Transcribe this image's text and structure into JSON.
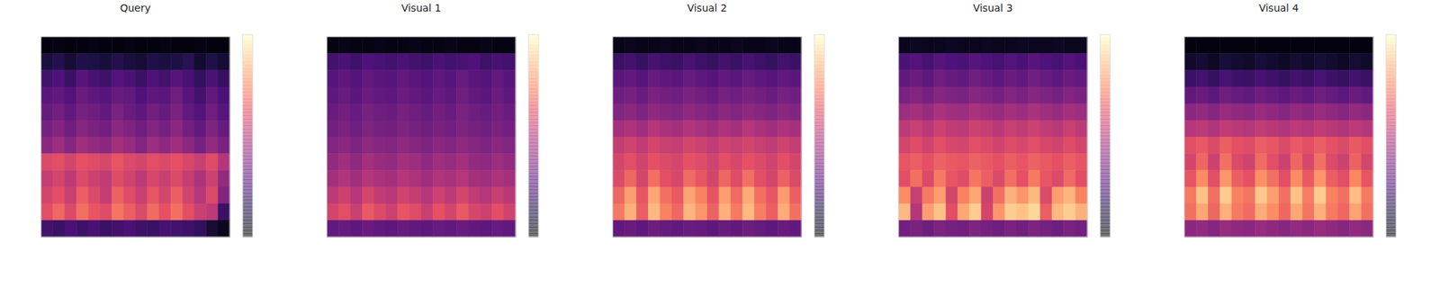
{
  "chart_data": [
    {
      "type": "heatmap",
      "title": "Query",
      "color": "magma",
      "color_range": [
        0,
        1
      ],
      "tick_labels": false,
      "cells": [
        [
          0.02,
          0.03,
          0.02,
          0.02,
          0.03,
          0.02,
          0.02,
          0.03,
          0.02,
          0.02,
          0.03,
          0.02,
          0.02,
          0.03,
          0.02,
          0.02
        ],
        [
          0.12,
          0.15,
          0.1,
          0.14,
          0.13,
          0.11,
          0.15,
          0.12,
          0.1,
          0.14,
          0.12,
          0.13,
          0.16,
          0.09,
          0.14,
          0.1
        ],
        [
          0.22,
          0.25,
          0.2,
          0.27,
          0.23,
          0.21,
          0.26,
          0.24,
          0.2,
          0.25,
          0.22,
          0.27,
          0.23,
          0.18,
          0.24,
          0.19
        ],
        [
          0.28,
          0.3,
          0.26,
          0.32,
          0.29,
          0.27,
          0.31,
          0.3,
          0.25,
          0.29,
          0.28,
          0.33,
          0.27,
          0.22,
          0.3,
          0.24
        ],
        [
          0.31,
          0.34,
          0.3,
          0.35,
          0.33,
          0.3,
          0.36,
          0.32,
          0.29,
          0.34,
          0.31,
          0.36,
          0.3,
          0.26,
          0.33,
          0.27
        ],
        [
          0.35,
          0.38,
          0.33,
          0.39,
          0.36,
          0.34,
          0.4,
          0.37,
          0.33,
          0.38,
          0.35,
          0.4,
          0.34,
          0.3,
          0.37,
          0.31
        ],
        [
          0.4,
          0.44,
          0.39,
          0.45,
          0.42,
          0.4,
          0.46,
          0.43,
          0.38,
          0.44,
          0.41,
          0.45,
          0.4,
          0.35,
          0.42,
          0.36
        ],
        [
          0.6,
          0.62,
          0.58,
          0.63,
          0.61,
          0.59,
          0.64,
          0.6,
          0.58,
          0.62,
          0.6,
          0.63,
          0.59,
          0.55,
          0.61,
          0.5
        ],
        [
          0.54,
          0.58,
          0.52,
          0.6,
          0.56,
          0.53,
          0.61,
          0.57,
          0.52,
          0.59,
          0.55,
          0.6,
          0.54,
          0.48,
          0.56,
          0.42
        ],
        [
          0.58,
          0.62,
          0.55,
          0.66,
          0.6,
          0.54,
          0.67,
          0.61,
          0.55,
          0.64,
          0.58,
          0.66,
          0.57,
          0.5,
          0.6,
          0.38
        ],
        [
          0.62,
          0.68,
          0.6,
          0.7,
          0.64,
          0.61,
          0.71,
          0.66,
          0.6,
          0.69,
          0.63,
          0.7,
          0.62,
          0.55,
          0.52,
          0.2
        ],
        [
          0.22,
          0.2,
          0.24,
          0.21,
          0.23,
          0.2,
          0.22,
          0.24,
          0.21,
          0.2,
          0.23,
          0.22,
          0.21,
          0.18,
          0.1,
          0.05
        ]
      ]
    },
    {
      "type": "heatmap",
      "title": "Visual 1",
      "color": "magma",
      "color_range": [
        0,
        1
      ],
      "tick_labels": false,
      "cells": [
        [
          0.03,
          0.04,
          0.03,
          0.03,
          0.04,
          0.03,
          0.03,
          0.04,
          0.03,
          0.03,
          0.04,
          0.03,
          0.03,
          0.04,
          0.03,
          0.03
        ],
        [
          0.22,
          0.24,
          0.21,
          0.25,
          0.23,
          0.22,
          0.24,
          0.22,
          0.21,
          0.24,
          0.22,
          0.23,
          0.25,
          0.21,
          0.23,
          0.22
        ],
        [
          0.27,
          0.29,
          0.26,
          0.3,
          0.28,
          0.27,
          0.3,
          0.28,
          0.26,
          0.29,
          0.27,
          0.31,
          0.28,
          0.26,
          0.3,
          0.27
        ],
        [
          0.29,
          0.31,
          0.28,
          0.32,
          0.3,
          0.29,
          0.32,
          0.3,
          0.28,
          0.31,
          0.29,
          0.33,
          0.3,
          0.28,
          0.32,
          0.29
        ],
        [
          0.32,
          0.34,
          0.31,
          0.35,
          0.33,
          0.32,
          0.35,
          0.33,
          0.31,
          0.34,
          0.32,
          0.36,
          0.33,
          0.31,
          0.34,
          0.32
        ],
        [
          0.34,
          0.36,
          0.33,
          0.37,
          0.35,
          0.34,
          0.37,
          0.35,
          0.33,
          0.36,
          0.34,
          0.37,
          0.35,
          0.33,
          0.36,
          0.34
        ],
        [
          0.38,
          0.4,
          0.37,
          0.41,
          0.39,
          0.38,
          0.41,
          0.39,
          0.37,
          0.4,
          0.38,
          0.41,
          0.39,
          0.37,
          0.4,
          0.38
        ],
        [
          0.42,
          0.45,
          0.41,
          0.46,
          0.43,
          0.42,
          0.46,
          0.44,
          0.41,
          0.45,
          0.43,
          0.46,
          0.42,
          0.41,
          0.44,
          0.42
        ],
        [
          0.46,
          0.49,
          0.45,
          0.5,
          0.47,
          0.46,
          0.5,
          0.48,
          0.45,
          0.49,
          0.47,
          0.5,
          0.46,
          0.45,
          0.48,
          0.46
        ],
        [
          0.52,
          0.56,
          0.5,
          0.58,
          0.53,
          0.51,
          0.57,
          0.54,
          0.5,
          0.56,
          0.52,
          0.58,
          0.53,
          0.5,
          0.55,
          0.51
        ],
        [
          0.58,
          0.62,
          0.55,
          0.65,
          0.6,
          0.56,
          0.64,
          0.61,
          0.55,
          0.63,
          0.58,
          0.65,
          0.59,
          0.56,
          0.62,
          0.57
        ],
        [
          0.3,
          0.31,
          0.29,
          0.32,
          0.3,
          0.29,
          0.31,
          0.3,
          0.29,
          0.31,
          0.3,
          0.32,
          0.3,
          0.29,
          0.31,
          0.3
        ]
      ]
    },
    {
      "type": "heatmap",
      "title": "Visual 2",
      "color": "magma",
      "color_range": [
        0,
        1
      ],
      "tick_labels": false,
      "cells": [
        [
          0.04,
          0.05,
          0.04,
          0.04,
          0.05,
          0.04,
          0.04,
          0.05,
          0.04,
          0.04,
          0.05,
          0.04,
          0.04,
          0.05,
          0.04,
          0.04
        ],
        [
          0.2,
          0.22,
          0.19,
          0.23,
          0.21,
          0.2,
          0.23,
          0.21,
          0.19,
          0.22,
          0.2,
          0.23,
          0.21,
          0.19,
          0.22,
          0.2
        ],
        [
          0.28,
          0.3,
          0.27,
          0.31,
          0.29,
          0.28,
          0.31,
          0.29,
          0.27,
          0.3,
          0.28,
          0.31,
          0.29,
          0.27,
          0.3,
          0.28
        ],
        [
          0.33,
          0.35,
          0.32,
          0.36,
          0.34,
          0.33,
          0.36,
          0.34,
          0.32,
          0.35,
          0.33,
          0.36,
          0.34,
          0.32,
          0.35,
          0.33
        ],
        [
          0.38,
          0.4,
          0.37,
          0.41,
          0.39,
          0.38,
          0.41,
          0.39,
          0.37,
          0.4,
          0.38,
          0.41,
          0.39,
          0.37,
          0.4,
          0.38
        ],
        [
          0.46,
          0.48,
          0.45,
          0.5,
          0.47,
          0.46,
          0.49,
          0.47,
          0.45,
          0.48,
          0.46,
          0.5,
          0.47,
          0.45,
          0.48,
          0.46
        ],
        [
          0.54,
          0.57,
          0.53,
          0.58,
          0.55,
          0.54,
          0.58,
          0.56,
          0.53,
          0.57,
          0.55,
          0.58,
          0.55,
          0.53,
          0.57,
          0.54
        ],
        [
          0.58,
          0.62,
          0.57,
          0.63,
          0.6,
          0.58,
          0.63,
          0.61,
          0.57,
          0.62,
          0.59,
          0.63,
          0.6,
          0.57,
          0.62,
          0.58
        ],
        [
          0.6,
          0.68,
          0.58,
          0.7,
          0.62,
          0.59,
          0.69,
          0.64,
          0.58,
          0.68,
          0.61,
          0.7,
          0.62,
          0.58,
          0.67,
          0.6
        ],
        [
          0.68,
          0.8,
          0.64,
          0.82,
          0.7,
          0.65,
          0.81,
          0.74,
          0.64,
          0.8,
          0.69,
          0.83,
          0.7,
          0.64,
          0.79,
          0.66
        ],
        [
          0.72,
          0.84,
          0.66,
          0.86,
          0.74,
          0.68,
          0.85,
          0.78,
          0.67,
          0.84,
          0.72,
          0.86,
          0.73,
          0.66,
          0.83,
          0.7
        ],
        [
          0.3,
          0.32,
          0.29,
          0.33,
          0.31,
          0.3,
          0.32,
          0.31,
          0.29,
          0.32,
          0.3,
          0.33,
          0.31,
          0.29,
          0.32,
          0.3
        ]
      ]
    },
    {
      "type": "heatmap",
      "title": "Visual 3",
      "color": "magma",
      "color_range": [
        0,
        1
      ],
      "tick_labels": false,
      "cells": [
        [
          0.05,
          0.06,
          0.05,
          0.05,
          0.06,
          0.05,
          0.05,
          0.06,
          0.05,
          0.05,
          0.06,
          0.05,
          0.05,
          0.06,
          0.05,
          0.05
        ],
        [
          0.24,
          0.26,
          0.23,
          0.27,
          0.25,
          0.24,
          0.27,
          0.25,
          0.23,
          0.26,
          0.24,
          0.27,
          0.25,
          0.23,
          0.26,
          0.24
        ],
        [
          0.3,
          0.32,
          0.29,
          0.33,
          0.31,
          0.3,
          0.33,
          0.31,
          0.29,
          0.32,
          0.3,
          0.33,
          0.31,
          0.29,
          0.32,
          0.3
        ],
        [
          0.36,
          0.38,
          0.35,
          0.39,
          0.37,
          0.36,
          0.39,
          0.37,
          0.35,
          0.38,
          0.36,
          0.39,
          0.37,
          0.35,
          0.38,
          0.36
        ],
        [
          0.44,
          0.46,
          0.43,
          0.47,
          0.45,
          0.44,
          0.47,
          0.45,
          0.43,
          0.46,
          0.44,
          0.47,
          0.45,
          0.43,
          0.46,
          0.44
        ],
        [
          0.52,
          0.55,
          0.51,
          0.56,
          0.53,
          0.52,
          0.56,
          0.54,
          0.51,
          0.55,
          0.53,
          0.56,
          0.53,
          0.51,
          0.55,
          0.52
        ],
        [
          0.58,
          0.61,
          0.57,
          0.62,
          0.59,
          0.58,
          0.62,
          0.6,
          0.57,
          0.61,
          0.59,
          0.62,
          0.59,
          0.57,
          0.61,
          0.58
        ],
        [
          0.64,
          0.66,
          0.63,
          0.67,
          0.65,
          0.64,
          0.67,
          0.65,
          0.63,
          0.66,
          0.64,
          0.67,
          0.65,
          0.63,
          0.66,
          0.64
        ],
        [
          0.62,
          0.7,
          0.6,
          0.72,
          0.64,
          0.61,
          0.71,
          0.66,
          0.6,
          0.7,
          0.63,
          0.72,
          0.64,
          0.6,
          0.69,
          0.62
        ],
        [
          0.76,
          0.55,
          0.72,
          0.8,
          0.58,
          0.74,
          0.82,
          0.56,
          0.7,
          0.84,
          0.78,
          0.86,
          0.6,
          0.8,
          0.85,
          0.74
        ],
        [
          0.86,
          0.5,
          0.8,
          0.88,
          0.62,
          0.82,
          0.9,
          0.58,
          0.78,
          0.9,
          0.88,
          0.92,
          0.66,
          0.86,
          0.9,
          0.84
        ],
        [
          0.34,
          0.36,
          0.33,
          0.37,
          0.35,
          0.34,
          0.37,
          0.35,
          0.33,
          0.36,
          0.34,
          0.37,
          0.35,
          0.33,
          0.36,
          0.34
        ]
      ]
    },
    {
      "type": "heatmap",
      "title": "Visual 4",
      "color": "magma",
      "color_range": [
        0,
        1
      ],
      "tick_labels": false,
      "cells": [
        [
          0.02,
          0.02,
          0.02,
          0.02,
          0.02,
          0.02,
          0.02,
          0.02,
          0.02,
          0.02,
          0.02,
          0.02,
          0.02,
          0.02,
          0.02,
          0.02
        ],
        [
          0.08,
          0.1,
          0.07,
          0.11,
          0.09,
          0.08,
          0.11,
          0.09,
          0.07,
          0.1,
          0.08,
          0.11,
          0.09,
          0.07,
          0.1,
          0.08
        ],
        [
          0.2,
          0.22,
          0.19,
          0.23,
          0.21,
          0.2,
          0.23,
          0.21,
          0.19,
          0.22,
          0.2,
          0.23,
          0.21,
          0.19,
          0.22,
          0.2
        ],
        [
          0.3,
          0.32,
          0.29,
          0.33,
          0.31,
          0.3,
          0.33,
          0.31,
          0.29,
          0.32,
          0.3,
          0.33,
          0.31,
          0.29,
          0.32,
          0.3
        ],
        [
          0.4,
          0.42,
          0.39,
          0.43,
          0.41,
          0.4,
          0.43,
          0.41,
          0.39,
          0.42,
          0.4,
          0.43,
          0.41,
          0.39,
          0.42,
          0.4
        ],
        [
          0.5,
          0.52,
          0.49,
          0.53,
          0.51,
          0.5,
          0.53,
          0.51,
          0.49,
          0.52,
          0.5,
          0.53,
          0.51,
          0.49,
          0.52,
          0.5
        ],
        [
          0.62,
          0.65,
          0.6,
          0.66,
          0.63,
          0.61,
          0.66,
          0.64,
          0.6,
          0.65,
          0.62,
          0.66,
          0.63,
          0.6,
          0.65,
          0.62
        ],
        [
          0.58,
          0.68,
          0.56,
          0.7,
          0.6,
          0.57,
          0.69,
          0.62,
          0.56,
          0.68,
          0.59,
          0.7,
          0.6,
          0.56,
          0.67,
          0.58
        ],
        [
          0.64,
          0.76,
          0.62,
          0.78,
          0.66,
          0.63,
          0.77,
          0.7,
          0.62,
          0.76,
          0.65,
          0.78,
          0.66,
          0.62,
          0.75,
          0.64
        ],
        [
          0.72,
          0.88,
          0.7,
          0.9,
          0.74,
          0.71,
          0.89,
          0.8,
          0.7,
          0.88,
          0.73,
          0.9,
          0.74,
          0.7,
          0.87,
          0.72
        ],
        [
          0.7,
          0.82,
          0.68,
          0.84,
          0.72,
          0.69,
          0.83,
          0.76,
          0.68,
          0.82,
          0.71,
          0.84,
          0.72,
          0.68,
          0.81,
          0.7
        ],
        [
          0.4,
          0.42,
          0.39,
          0.43,
          0.41,
          0.4,
          0.43,
          0.41,
          0.39,
          0.42,
          0.4,
          0.43,
          0.41,
          0.39,
          0.42,
          0.4
        ]
      ]
    }
  ]
}
